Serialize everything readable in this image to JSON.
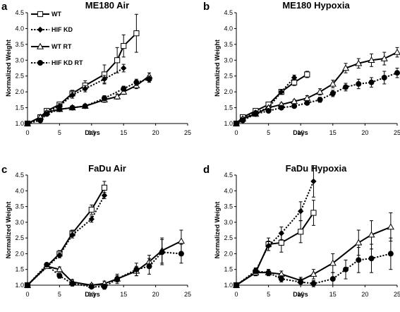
{
  "chart_data": [
    {
      "type": "line",
      "panel_label": "a",
      "title": "ME180 Air",
      "xlabel": "Days",
      "ylabel": "Normalized Weight",
      "xlim": [
        0,
        25
      ],
      "ylim": [
        1.0,
        4.5
      ],
      "xticks": [
        "0",
        "5",
        "10",
        "15",
        "20",
        "25"
      ],
      "yticks": [
        "1.0",
        "1.5",
        "2.0",
        "2.5",
        "3.0",
        "3.5",
        "4.0",
        "4.5"
      ],
      "legend": "top-left",
      "series": [
        {
          "name": "WT",
          "style": "solid",
          "marker": "open-square",
          "x": [
            0,
            2,
            3,
            5,
            7,
            9,
            12,
            14,
            15,
            17
          ],
          "y": [
            1.0,
            1.2,
            1.4,
            1.6,
            1.95,
            2.2,
            2.55,
            3.0,
            3.45,
            3.85
          ],
          "err": [
            0,
            0.05,
            0.05,
            0.08,
            0.1,
            0.15,
            0.3,
            0.4,
            0.35,
            0.6
          ]
        },
        {
          "name": "HIF KD",
          "style": "dotted",
          "marker": "filled-diamond",
          "x": [
            0,
            2,
            3,
            5,
            7,
            9,
            12,
            15
          ],
          "y": [
            1.0,
            1.15,
            1.35,
            1.55,
            1.9,
            2.1,
            2.4,
            2.75
          ],
          "err": [
            0,
            0.05,
            0.05,
            0.08,
            0.1,
            0.1,
            0.12,
            0.12
          ]
        },
        {
          "name": "WT RT",
          "style": "solid",
          "marker": "open-triangle",
          "x": [
            0,
            2,
            3,
            5,
            7,
            9,
            12,
            14,
            15,
            17,
            19
          ],
          "y": [
            1.0,
            1.2,
            1.35,
            1.45,
            1.5,
            1.55,
            1.75,
            1.85,
            2.0,
            2.2,
            2.5
          ],
          "err": [
            0,
            0.05,
            0.05,
            0.05,
            0.05,
            0.05,
            0.08,
            0.08,
            0.08,
            0.1,
            0.1
          ]
        },
        {
          "name": "HIF KD RT",
          "style": "dotted",
          "marker": "filled-circle",
          "x": [
            0,
            2,
            3,
            5,
            7,
            9,
            12,
            15,
            17,
            19
          ],
          "y": [
            1.0,
            1.1,
            1.3,
            1.45,
            1.5,
            1.55,
            1.8,
            2.1,
            2.3,
            2.4
          ],
          "err": [
            0,
            0.05,
            0.05,
            0.05,
            0.05,
            0.05,
            0.08,
            0.08,
            0.1,
            0.1
          ]
        }
      ]
    },
    {
      "type": "line",
      "panel_label": "b",
      "title": "ME180 Hypoxia",
      "xlabel": "Days",
      "ylabel": "Normalized Weight",
      "xlim": [
        0,
        25
      ],
      "ylim": [
        1.0,
        4.5
      ],
      "xticks": [
        "0",
        "5",
        "10",
        "15",
        "20",
        "25"
      ],
      "yticks": [
        "1.0",
        "1.5",
        "2.0",
        "2.5",
        "3.0",
        "3.5",
        "4.0",
        "4.5"
      ],
      "series": [
        {
          "name": "WT",
          "style": "solid",
          "marker": "open-square",
          "x": [
            0,
            1,
            3,
            5,
            7,
            9,
            11
          ],
          "y": [
            1.0,
            1.2,
            1.4,
            1.6,
            2.0,
            2.3,
            2.55
          ],
          "err": [
            0,
            0.05,
            0.05,
            0.08,
            0.08,
            0.1,
            0.1
          ]
        },
        {
          "name": "HIF KD",
          "style": "dotted",
          "marker": "filled-diamond",
          "x": [
            0,
            1,
            3,
            5,
            7,
            9
          ],
          "y": [
            1.0,
            1.15,
            1.35,
            1.5,
            2.0,
            2.45
          ],
          "err": [
            0,
            0.05,
            0.05,
            0.05,
            0.08,
            0.08
          ]
        },
        {
          "name": "WT RT",
          "style": "solid",
          "marker": "open-triangle",
          "x": [
            0,
            1,
            3,
            5,
            7,
            9,
            11,
            13,
            15,
            17,
            19,
            21,
            23,
            25
          ],
          "y": [
            1.0,
            1.15,
            1.3,
            1.5,
            1.6,
            1.7,
            1.8,
            2.0,
            2.25,
            2.75,
            2.9,
            3.0,
            3.05,
            3.25
          ],
          "err": [
            0,
            0.05,
            0.05,
            0.05,
            0.05,
            0.05,
            0.08,
            0.1,
            0.12,
            0.15,
            0.15,
            0.2,
            0.2,
            0.15
          ]
        },
        {
          "name": "HIF KD RT",
          "style": "dotted",
          "marker": "filled-circle",
          "x": [
            0,
            1,
            3,
            5,
            7,
            9,
            11,
            13,
            15,
            17,
            19,
            21,
            23,
            25
          ],
          "y": [
            1.0,
            1.1,
            1.3,
            1.4,
            1.5,
            1.55,
            1.65,
            1.75,
            1.95,
            2.15,
            2.25,
            2.3,
            2.45,
            2.6
          ],
          "err": [
            0,
            0.05,
            0.05,
            0.05,
            0.05,
            0.05,
            0.05,
            0.08,
            0.1,
            0.12,
            0.15,
            0.15,
            0.2,
            0.15
          ]
        }
      ]
    },
    {
      "type": "line",
      "panel_label": "c",
      "title": "FaDu Air",
      "xlabel": "Days",
      "ylabel": "Normalized Weight",
      "xlim": [
        0,
        25
      ],
      "ylim": [
        1.0,
        4.5
      ],
      "xticks": [
        "0",
        "5",
        "10",
        "15",
        "20",
        "25"
      ],
      "yticks": [
        "1.0",
        "1.5",
        "2.0",
        "2.5",
        "3.0",
        "3.5",
        "4.0",
        "4.5"
      ],
      "series": [
        {
          "name": "WT",
          "style": "solid",
          "marker": "open-square",
          "x": [
            0,
            5,
            7,
            10,
            12
          ],
          "y": [
            1.0,
            2.0,
            2.65,
            3.4,
            4.1
          ],
          "err": [
            0,
            0.1,
            0.1,
            0.15,
            0.2
          ]
        },
        {
          "name": "HIF KD",
          "style": "dotted",
          "marker": "filled-diamond",
          "x": [
            0,
            5,
            7,
            10,
            12
          ],
          "y": [
            1.0,
            1.95,
            2.6,
            3.1,
            3.85
          ],
          "err": [
            0,
            0.08,
            0.1,
            0.1,
            0.1
          ]
        },
        {
          "name": "WT RT",
          "style": "solid",
          "marker": "open-triangle",
          "x": [
            0,
            3,
            5,
            7,
            10,
            12,
            14,
            17,
            19,
            21,
            24
          ],
          "y": [
            1.0,
            1.6,
            1.5,
            1.1,
            1.0,
            1.05,
            1.2,
            1.45,
            1.75,
            2.1,
            2.4
          ],
          "err": [
            0,
            0.05,
            0.08,
            0.08,
            0.05,
            0.08,
            0.1,
            0.15,
            0.2,
            0.4,
            0.35
          ]
        },
        {
          "name": "HIF KD RT",
          "style": "dotted",
          "marker": "filled-circle",
          "x": [
            0,
            3,
            5,
            7,
            10,
            12,
            14,
            17,
            19,
            21,
            24
          ],
          "y": [
            1.0,
            1.65,
            1.3,
            1.05,
            0.95,
            0.95,
            1.2,
            1.5,
            1.6,
            2.05,
            2.0
          ],
          "err": [
            0,
            0.05,
            0.08,
            0.08,
            0.05,
            0.08,
            0.15,
            0.2,
            0.25,
            0.4,
            0.3
          ]
        }
      ]
    },
    {
      "type": "line",
      "panel_label": "d",
      "title": "FaDu Hypoxia",
      "xlabel": "Days",
      "ylabel": "Normalized Weight",
      "xlim": [
        0,
        25
      ],
      "ylim": [
        1.0,
        4.5
      ],
      "xticks": [
        "0",
        "5",
        "10",
        "15",
        "20",
        "25"
      ],
      "yticks": [
        "1.0",
        "1.5",
        "2.0",
        "2.5",
        "3.0",
        "3.5",
        "4.0",
        "4.5"
      ],
      "series": [
        {
          "name": "WT",
          "style": "solid",
          "marker": "open-square",
          "x": [
            0,
            3,
            5,
            7,
            10,
            12
          ],
          "y": [
            1.0,
            1.4,
            2.3,
            2.35,
            2.7,
            3.3
          ],
          "err": [
            0,
            0.1,
            0.2,
            0.3,
            0.35,
            0.4
          ]
        },
        {
          "name": "HIF KD",
          "style": "dotted",
          "marker": "filled-diamond",
          "x": [
            0,
            3,
            5,
            7,
            10,
            12
          ],
          "y": [
            1.0,
            1.45,
            2.25,
            2.65,
            3.35,
            4.3
          ],
          "err": [
            0,
            0.1,
            0.15,
            0.2,
            0.3,
            0.5
          ]
        },
        {
          "name": "WT RT",
          "style": "solid",
          "marker": "open-triangle",
          "x": [
            0,
            3,
            5,
            7,
            10,
            12,
            15,
            19,
            21,
            24
          ],
          "y": [
            1.0,
            1.4,
            1.4,
            1.35,
            1.15,
            1.35,
            1.7,
            2.35,
            2.6,
            2.85
          ],
          "err": [
            0,
            0.1,
            0.1,
            0.1,
            0.1,
            0.15,
            0.3,
            0.4,
            0.45,
            0.45
          ]
        },
        {
          "name": "HIF KD RT",
          "style": "dotted",
          "marker": "filled-circle",
          "x": [
            0,
            3,
            5,
            7,
            10,
            12,
            15,
            17,
            19,
            21,
            24
          ],
          "y": [
            1.0,
            1.45,
            1.4,
            1.2,
            1.1,
            1.05,
            1.2,
            1.5,
            1.8,
            1.85,
            2.0
          ],
          "err": [
            0,
            0.08,
            0.1,
            0.1,
            0.1,
            0.1,
            0.2,
            0.3,
            0.4,
            0.45,
            0.5
          ]
        }
      ]
    }
  ]
}
